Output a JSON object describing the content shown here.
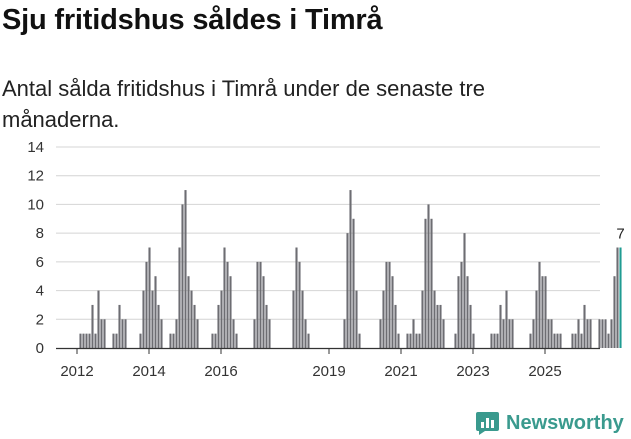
{
  "title": "Sju fritidshus såldes i Timrå",
  "subtitle": "Antal sålda fritidshus i Timrå under de senaste tre månaderna.",
  "brand": {
    "name": "Newsworthy",
    "color": "#3a9a8e"
  },
  "colors": {
    "bar": "#6d6d72",
    "highlight": "#1f9c92",
    "grid": "#d4d4d4",
    "axis": "#333333"
  },
  "chart_data": {
    "type": "bar",
    "title": "Antal sålda fritidshus i Timrå",
    "xlabel": "",
    "ylabel": "",
    "ylim": [
      0,
      14
    ],
    "yticks": [
      0,
      2,
      4,
      6,
      8,
      10,
      12,
      14
    ],
    "x_start": {
      "year": 2011,
      "month": 7
    },
    "x_tick_labels": [
      {
        "label": "2012",
        "year": 2012,
        "month": 1
      },
      {
        "label": "2014",
        "year": 2014,
        "month": 1
      },
      {
        "label": "2016",
        "year": 2016,
        "month": 1
      },
      {
        "label": "2019",
        "year": 2019,
        "month": 1
      },
      {
        "label": "2021",
        "year": 2021,
        "month": 1
      },
      {
        "label": "2023",
        "year": 2023,
        "month": 1
      },
      {
        "label": "2025",
        "year": 2025,
        "month": 1
      }
    ],
    "values": [
      0,
      0,
      0,
      0,
      0,
      0,
      0,
      1,
      1,
      1,
      1,
      3,
      1,
      4,
      2,
      2,
      0,
      0,
      1,
      1,
      3,
      2,
      2,
      0,
      0,
      0,
      0,
      1,
      4,
      6,
      7,
      4,
      5,
      3,
      2,
      0,
      0,
      1,
      1,
      2,
      7,
      10,
      11,
      5,
      4,
      3,
      2,
      0,
      0,
      0,
      0,
      1,
      1,
      3,
      4,
      7,
      6,
      5,
      2,
      1,
      0,
      0,
      0,
      0,
      0,
      2,
      6,
      6,
      5,
      3,
      2,
      0,
      0,
      0,
      0,
      0,
      0,
      0,
      4,
      7,
      6,
      4,
      2,
      1,
      0,
      0,
      0,
      0,
      0,
      0,
      0,
      0,
      0,
      0,
      0,
      2,
      8,
      11,
      9,
      4,
      1,
      0,
      0,
      0,
      0,
      0,
      0,
      2,
      4,
      6,
      6,
      5,
      3,
      1,
      0,
      0,
      1,
      1,
      2,
      1,
      1,
      4,
      9,
      10,
      9,
      4,
      3,
      3,
      2,
      0,
      0,
      0,
      1,
      5,
      6,
      8,
      5,
      3,
      1,
      0,
      0,
      0,
      0,
      0,
      1,
      1,
      1,
      3,
      2,
      4,
      2,
      2,
      0,
      0,
      0,
      0,
      0,
      1,
      2,
      4,
      6,
      5,
      5,
      2,
      2,
      1,
      1,
      1,
      0,
      0,
      0,
      1,
      1,
      2,
      1,
      3,
      2,
      2,
      0,
      0,
      2,
      2,
      2,
      1,
      2,
      5,
      7,
      7
    ],
    "highlight_last": 1,
    "data_label": "7"
  }
}
